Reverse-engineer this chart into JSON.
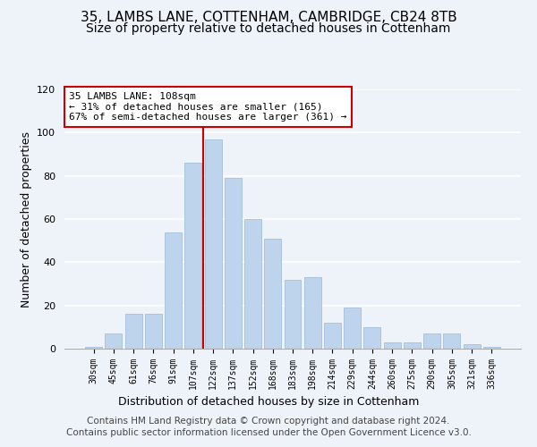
{
  "title1": "35, LAMBS LANE, COTTENHAM, CAMBRIDGE, CB24 8TB",
  "title2": "Size of property relative to detached houses in Cottenham",
  "xlabel": "Distribution of detached houses by size in Cottenham",
  "ylabel": "Number of detached properties",
  "categories": [
    "30sqm",
    "45sqm",
    "61sqm",
    "76sqm",
    "91sqm",
    "107sqm",
    "122sqm",
    "137sqm",
    "152sqm",
    "168sqm",
    "183sqm",
    "198sqm",
    "214sqm",
    "229sqm",
    "244sqm",
    "260sqm",
    "275sqm",
    "290sqm",
    "305sqm",
    "321sqm",
    "336sqm"
  ],
  "values": [
    1,
    7,
    16,
    16,
    54,
    86,
    97,
    79,
    60,
    51,
    32,
    33,
    12,
    19,
    10,
    3,
    3,
    7,
    7,
    2,
    1
  ],
  "bar_color": "#bdd4ec",
  "bar_edgecolor": "#9ab8d8",
  "vline_x": 5.5,
  "vline_color": "#cc0000",
  "annotation_title": "35 LAMBS LANE: 108sqm",
  "annotation_line1": "← 31% of detached houses are smaller (165)",
  "annotation_line2": "67% of semi-detached houses are larger (361) →",
  "annotation_box_edgecolor": "#cc0000",
  "annotation_box_facecolor": "#ffffff",
  "ylim": [
    0,
    120
  ],
  "yticks": [
    0,
    20,
    40,
    60,
    80,
    100,
    120
  ],
  "footer1": "Contains HM Land Registry data © Crown copyright and database right 2024.",
  "footer2": "Contains public sector information licensed under the Open Government Licence v3.0.",
  "bg_color": "#eef2f9",
  "plot_bg_color": "#eef2f9",
  "title1_fontsize": 11,
  "title2_fontsize": 10,
  "xlabel_fontsize": 9,
  "ylabel_fontsize": 9,
  "footer_fontsize": 7.5
}
